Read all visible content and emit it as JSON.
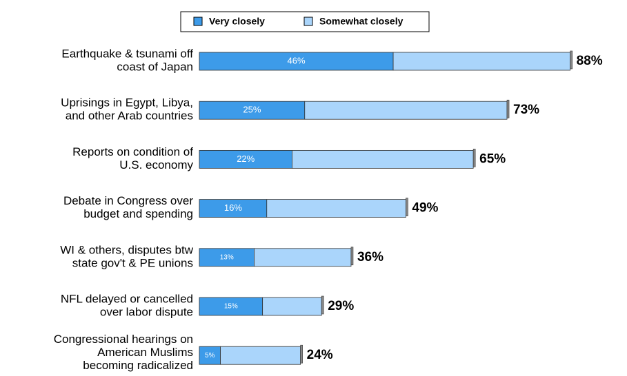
{
  "chart_data": {
    "type": "stacked-bar-horizontal",
    "categories": [
      [
        "Earthquake & tsunami off",
        "coast of Japan"
      ],
      [
        "Uprisings in Egypt, Libya,",
        "and other Arab countries"
      ],
      [
        "Reports on condition of",
        "U.S. economy"
      ],
      [
        "Debate in Congress over",
        "budget and spending"
      ],
      [
        "WI & others, disputes btw",
        "state gov't & PE unions"
      ],
      [
        "NFL delayed or cancelled",
        "over labor dispute"
      ],
      [
        "Congressional hearings on",
        "American Muslims",
        "becoming radicalized"
      ]
    ],
    "series": [
      {
        "name": "Very closely",
        "color": "#3d9be9",
        "values": [
          46,
          25,
          22,
          16,
          13,
          15,
          5
        ],
        "value_labels": [
          "46%",
          "25%",
          "22%",
          "16%",
          "13%",
          "15%",
          "5%"
        ]
      },
      {
        "name": "Somewhat closely",
        "color": "#aad5fb",
        "values": [
          42,
          48,
          43,
          33,
          23,
          14,
          19
        ]
      }
    ],
    "totals": [
      88,
      73,
      65,
      49,
      36,
      29,
      24
    ],
    "total_labels": [
      "88%",
      "73%",
      "65%",
      "49%",
      "36%",
      "29%",
      "24%"
    ],
    "xlim": [
      0,
      100
    ],
    "legend": "top"
  }
}
